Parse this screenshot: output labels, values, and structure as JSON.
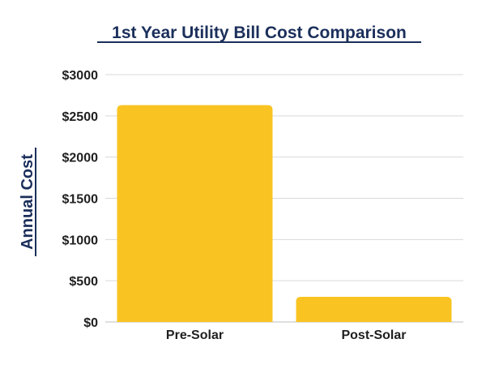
{
  "chart_data": {
    "type": "bar",
    "title": "1st Year Utility Bill Cost Comparison",
    "xlabel": "",
    "ylabel": "Annual Cost",
    "categories": [
      "Pre-Solar",
      "Post-Solar"
    ],
    "values": [
      2630,
      305
    ],
    "ylim": [
      0,
      3000
    ],
    "yticks": [
      0,
      500,
      1000,
      1500,
      2000,
      2500,
      3000
    ],
    "ytick_labels": [
      "$0",
      "$500",
      "$1000",
      "$1500",
      "$2000",
      "$2500",
      "$3000"
    ],
    "grid": true,
    "legend": "none",
    "colors": {
      "bar": "#F9C422",
      "title": "#1B2F5B",
      "ylabel": "#1B2F5B",
      "tick_text": "#1F1F1F",
      "grid": "#D9D9D9",
      "axis": "#BFBFBF"
    }
  }
}
